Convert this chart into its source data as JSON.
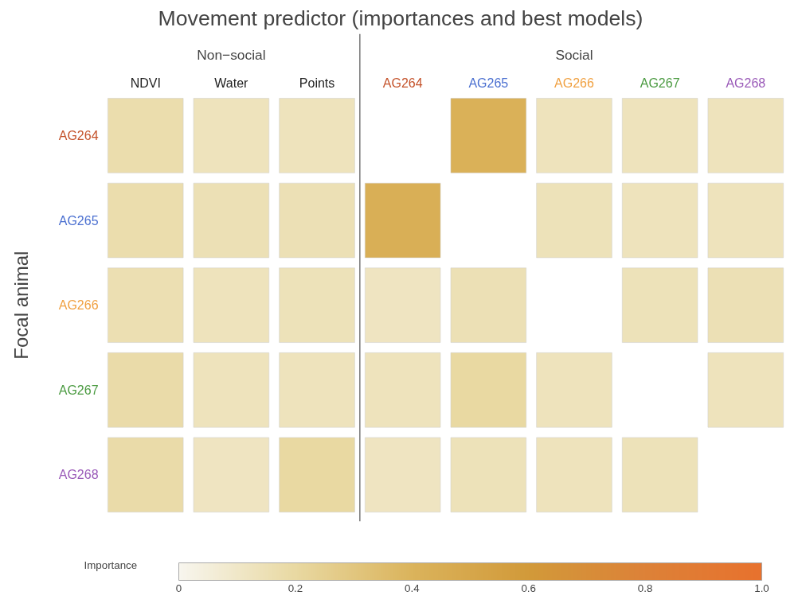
{
  "chart_data": {
    "type": "heatmap",
    "title": "Movement predictor (importances and best models)",
    "ylabel": "Focal animal",
    "clabel": "Importance",
    "categories": [
      "NDVI",
      "Water",
      "Points",
      "AG264",
      "AG265",
      "AG266",
      "AG267",
      "AG268"
    ],
    "y_categories": [
      "AG264",
      "AG265",
      "AG266",
      "AG267",
      "AG268"
    ],
    "cells": [
      [
        0.17,
        0.13,
        0.13,
        null,
        0.42,
        0.13,
        0.13,
        0.13
      ],
      [
        0.17,
        0.15,
        0.15,
        0.43,
        null,
        0.14,
        0.13,
        0.13
      ],
      [
        0.16,
        0.13,
        0.14,
        0.12,
        0.15,
        null,
        0.14,
        0.15
      ],
      [
        0.18,
        0.13,
        0.13,
        0.13,
        0.2,
        0.13,
        null,
        0.13
      ],
      [
        0.18,
        0.12,
        0.2,
        0.12,
        0.14,
        0.13,
        0.14,
        null
      ]
    ],
    "clim": [
      0,
      1
    ],
    "cticks": [
      0,
      0.2,
      0.4,
      0.6,
      0.8,
      {
        "value": 1,
        "label": "1.0"
      }
    ],
    "annotations": [
      "Non−social",
      "Social"
    ]
  }
}
